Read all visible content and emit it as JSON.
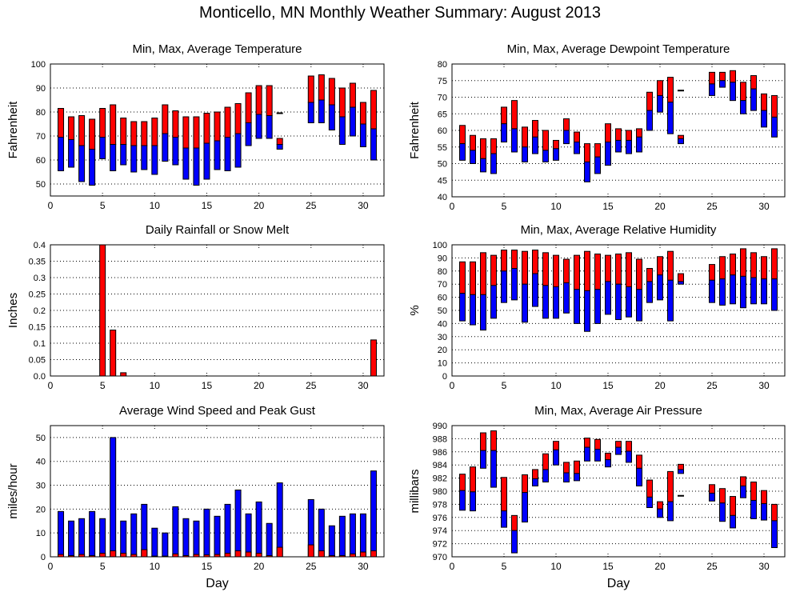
{
  "page_title": "Monticello, MN Monthly Weather Summary: August 2013",
  "colors": {
    "max_segment": "#ff0000",
    "min_segment": "#0000ff",
    "frame": "#000000"
  },
  "chart_data": [
    {
      "id": "temperature",
      "type": "bar",
      "subtype": "floating-range",
      "title": "Min, Max, Average Temperature",
      "xlabel": "",
      "ylabel": "Fahrenheit",
      "xlim": [
        0,
        32
      ],
      "ylim": [
        45,
        100
      ],
      "xticks": [
        0,
        5,
        10,
        15,
        20,
        25,
        30
      ],
      "yticks": [
        50,
        60,
        70,
        80,
        90,
        100
      ],
      "grid": true,
      "x": [
        1,
        2,
        3,
        4,
        5,
        6,
        7,
        8,
        9,
        10,
        11,
        12,
        13,
        14,
        15,
        16,
        17,
        18,
        19,
        20,
        21,
        22,
        23,
        24,
        25,
        26,
        27,
        28,
        29,
        30,
        31
      ],
      "series": [
        {
          "name": "Max",
          "values": [
            81.5,
            78,
            78.5,
            77,
            81.5,
            83,
            77.5,
            76,
            76,
            77.5,
            83,
            80.5,
            78,
            78,
            79.5,
            80,
            82,
            83.5,
            88,
            91,
            91,
            69,
            null,
            null,
            95,
            95.5,
            94,
            90,
            92,
            84,
            89
          ]
        },
        {
          "name": "Average",
          "values": [
            69.5,
            68.5,
            66,
            64.5,
            69.5,
            66.5,
            66.5,
            66,
            66,
            66,
            71,
            69.5,
            65,
            65,
            67,
            68,
            69.5,
            71,
            75.5,
            79,
            78.5,
            66.5,
            null,
            null,
            84,
            85,
            83,
            78,
            82,
            75,
            73
          ]
        },
        {
          "name": "Min",
          "values": [
            55.5,
            57,
            51,
            49.5,
            60.5,
            55.5,
            58,
            55,
            56,
            54,
            59.5,
            58,
            52,
            49.5,
            52,
            56,
            55.5,
            57,
            66,
            69,
            69,
            64.5,
            null,
            null,
            75.5,
            75.5,
            72.5,
            66.5,
            70,
            65.5,
            60
          ]
        }
      ],
      "annotations": [
        {
          "day": 22,
          "value": 79.5,
          "kind": "dash-marker"
        }
      ]
    },
    {
      "id": "dewpoint",
      "type": "bar",
      "subtype": "floating-range",
      "title": "Min, Max, Average Dewpoint Temperature",
      "xlabel": "",
      "ylabel": "Fahrenheit",
      "xlim": [
        0,
        32
      ],
      "ylim": [
        40,
        80
      ],
      "xticks": [
        0,
        5,
        10,
        15,
        20,
        25,
        30
      ],
      "yticks": [
        40,
        45,
        50,
        55,
        60,
        65,
        70,
        75,
        80
      ],
      "grid": true,
      "x": [
        1,
        2,
        3,
        4,
        5,
        6,
        7,
        8,
        9,
        10,
        11,
        12,
        13,
        14,
        15,
        16,
        17,
        18,
        19,
        20,
        21,
        22,
        23,
        24,
        25,
        26,
        27,
        28,
        29,
        30,
        31
      ],
      "series": [
        {
          "name": "Max",
          "values": [
            61.5,
            58.5,
            57.5,
            57.5,
            67,
            69,
            61,
            63,
            60,
            57,
            63.5,
            59.5,
            56,
            56,
            62,
            60.5,
            60,
            60.5,
            71.5,
            75,
            76,
            58.5,
            null,
            null,
            77.5,
            77.5,
            78,
            74.5,
            76.5,
            71,
            70.5
          ]
        },
        {
          "name": "Average",
          "values": [
            56,
            54,
            51.5,
            53,
            62,
            60.5,
            55,
            58,
            54,
            54.5,
            60,
            56.5,
            50.5,
            52,
            56.5,
            57,
            57,
            58,
            66,
            70.5,
            68.5,
            57.5,
            null,
            null,
            74,
            75,
            74.5,
            69,
            72.5,
            66,
            64
          ]
        },
        {
          "name": "Min",
          "values": [
            51,
            50,
            47.5,
            47,
            56.5,
            53.5,
            50.5,
            53,
            50.5,
            51,
            56,
            53,
            44.5,
            47,
            49.5,
            53.5,
            53,
            53.5,
            60,
            65.5,
            59,
            56,
            null,
            null,
            70.5,
            73,
            69,
            65,
            66,
            61,
            58
          ]
        }
      ],
      "annotations": [
        {
          "day": 22,
          "value": 72,
          "kind": "dash-marker"
        }
      ]
    },
    {
      "id": "rainfall",
      "type": "bar",
      "title": "Daily Rainfall or Snow Melt",
      "xlabel": "",
      "ylabel": "Inches",
      "xlim": [
        0,
        32
      ],
      "ylim": [
        0,
        0.4
      ],
      "xticks": [
        0,
        5,
        10,
        15,
        20,
        25,
        30
      ],
      "yticks": [
        0.0,
        0.05,
        0.1,
        0.15,
        0.2,
        0.25,
        0.3,
        0.35,
        0.4
      ],
      "ytick_labels": [
        "0.0",
        "0.05",
        "0.1",
        "0.15",
        "0.2",
        "0.25",
        "0.3",
        "0.35",
        "0.4"
      ],
      "grid": true,
      "x": [
        5,
        6,
        7,
        31
      ],
      "values": [
        0.4,
        0.14,
        0.01,
        0.11
      ]
    },
    {
      "id": "humidity",
      "type": "bar",
      "subtype": "floating-range",
      "title": "Min, Max, Average Relative Humidity",
      "xlabel": "",
      "ylabel": "%",
      "xlim": [
        0,
        32
      ],
      "ylim": [
        0,
        100
      ],
      "xticks": [
        0,
        5,
        10,
        15,
        20,
        25,
        30
      ],
      "yticks": [
        0,
        10,
        20,
        30,
        40,
        50,
        60,
        70,
        80,
        90,
        100
      ],
      "grid": true,
      "x": [
        1,
        2,
        3,
        4,
        5,
        6,
        7,
        8,
        9,
        10,
        11,
        12,
        13,
        14,
        15,
        16,
        17,
        18,
        19,
        20,
        21,
        22,
        23,
        24,
        25,
        26,
        27,
        28,
        29,
        30,
        31
      ],
      "series": [
        {
          "name": "Max",
          "values": [
            87,
            87,
            94,
            92,
            96,
            96,
            95,
            96,
            94,
            92,
            89,
            92,
            95,
            93,
            92,
            93,
            94,
            89,
            82,
            91,
            95,
            78,
            null,
            null,
            85,
            91,
            93,
            97,
            94,
            91,
            97
          ]
        },
        {
          "name": "Average",
          "values": [
            63,
            62,
            62,
            69,
            80,
            82,
            70,
            78,
            69,
            68,
            71,
            66,
            65,
            66,
            72,
            70,
            68,
            66,
            72,
            77,
            73,
            72,
            null,
            null,
            73,
            74,
            77,
            76,
            75,
            74,
            74
          ]
        },
        {
          "name": "Min",
          "values": [
            42,
            39,
            35,
            44,
            56,
            58,
            41,
            53,
            44,
            44,
            48,
            40,
            34,
            40,
            47,
            43,
            45,
            42,
            56,
            58,
            42,
            70,
            null,
            null,
            56,
            54,
            55,
            52,
            55,
            55,
            50
          ]
        }
      ]
    },
    {
      "id": "wind",
      "type": "bar",
      "subtype": "overlaid",
      "title": "Average Wind Speed and Peak Gust",
      "xlabel": "Day",
      "ylabel": "miles/hour",
      "xlim": [
        0,
        32
      ],
      "ylim": [
        0,
        55
      ],
      "xticks": [
        0,
        5,
        10,
        15,
        20,
        25,
        30
      ],
      "yticks": [
        0,
        10,
        20,
        30,
        40,
        50
      ],
      "grid": true,
      "x": [
        1,
        2,
        3,
        4,
        5,
        6,
        7,
        8,
        9,
        10,
        11,
        12,
        13,
        14,
        15,
        16,
        17,
        18,
        19,
        20,
        21,
        22,
        23,
        24,
        25,
        26,
        27,
        28,
        29,
        30,
        31
      ],
      "series": [
        {
          "name": "Peak Gust",
          "values": [
            19,
            15,
            16,
            19,
            16,
            50,
            15,
            18,
            22,
            12,
            10,
            21,
            16,
            15,
            20,
            17,
            22,
            28,
            18,
            23,
            14,
            31,
            null,
            null,
            24,
            20,
            13,
            17,
            18,
            18,
            36
          ]
        },
        {
          "name": "Average Wind Speed",
          "values": [
            1,
            0.5,
            1,
            0.5,
            1.5,
            2.5,
            1.5,
            1,
            3,
            0.3,
            0.3,
            1.2,
            0.5,
            1,
            0.8,
            1,
            1.5,
            2.5,
            2,
            1.5,
            0.5,
            4,
            null,
            null,
            5,
            2.5,
            0.5,
            0.5,
            1.2,
            2,
            2.5
          ]
        }
      ]
    },
    {
      "id": "pressure",
      "type": "bar",
      "subtype": "floating-range",
      "title": "Min, Max, Average Air Pressure",
      "xlabel": "Day",
      "ylabel": "millibars",
      "xlim": [
        0,
        32
      ],
      "ylim": [
        970,
        990
      ],
      "xticks": [
        0,
        5,
        10,
        15,
        20,
        25,
        30
      ],
      "yticks": [
        970,
        972,
        974,
        976,
        978,
        980,
        982,
        984,
        986,
        988,
        990
      ],
      "grid": true,
      "x": [
        1,
        2,
        3,
        4,
        5,
        6,
        7,
        8,
        9,
        10,
        11,
        12,
        13,
        14,
        15,
        16,
        17,
        18,
        19,
        20,
        21,
        22,
        23,
        24,
        25,
        26,
        27,
        28,
        29,
        30,
        31
      ],
      "series": [
        {
          "name": "Max",
          "values": [
            982.6,
            983.7,
            988.9,
            989.2,
            982.1,
            976.3,
            982.5,
            983.3,
            985.7,
            987.6,
            984.4,
            984.6,
            988.1,
            987.9,
            985.8,
            987.6,
            987.6,
            985.5,
            981.7,
            978.4,
            983,
            984.1,
            null,
            null,
            981,
            980.4,
            979.2,
            982.2,
            981.4,
            980.1,
            978
          ]
        },
        {
          "name": "Average",
          "values": [
            980.1,
            979.9,
            986.2,
            986.2,
            977,
            974,
            979.8,
            981.9,
            983.3,
            986.3,
            982.8,
            982.7,
            986.7,
            986.4,
            984.8,
            986.7,
            986.1,
            983.5,
            979.1,
            977.3,
            978.4,
            983.3,
            null,
            null,
            979.7,
            978.2,
            976.3,
            980.8,
            978.6,
            978.1,
            975.5
          ]
        },
        {
          "name": "Min",
          "values": [
            977.1,
            977,
            983.5,
            980.6,
            974.5,
            970.6,
            975.3,
            980.8,
            981.4,
            984,
            981.4,
            981.6,
            984.6,
            984.6,
            983.7,
            985.6,
            984.4,
            980.8,
            977.5,
            976,
            975.5,
            982.7,
            null,
            null,
            978.5,
            975.4,
            974.4,
            979,
            975.8,
            975.6,
            971.4
          ]
        }
      ],
      "annotations": [
        {
          "day": 22,
          "value": 979.3,
          "kind": "dash-marker"
        }
      ]
    }
  ]
}
